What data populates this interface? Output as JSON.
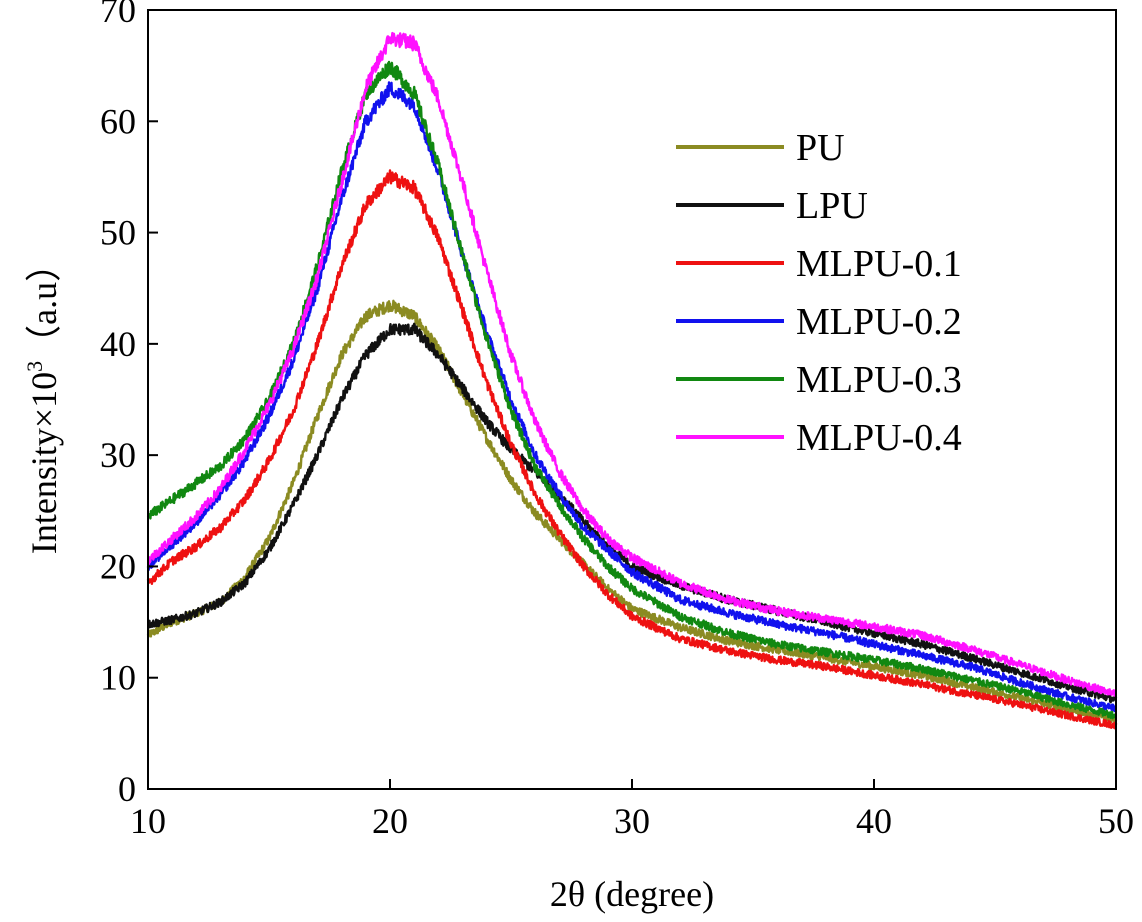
{
  "chart_data": {
    "type": "line",
    "xlabel": "2θ (degree)",
    "ylabel": "Intensity×10",
    "ylabel_superscript": "3",
    "ylabel_unit": "（a.u）",
    "xlim": [
      10,
      50
    ],
    "ylim": [
      0,
      70
    ],
    "xticks": [
      10,
      20,
      30,
      40,
      50
    ],
    "yticks": [
      0,
      10,
      20,
      30,
      40,
      50,
      60,
      70
    ],
    "grid": false,
    "legend_position": "top-right",
    "series": [
      {
        "name": "PU",
        "color": "#8B8B22",
        "points": [
          [
            10,
            13.8
          ],
          [
            11,
            15.0
          ],
          [
            12,
            15.8
          ],
          [
            13,
            16.8
          ],
          [
            14,
            19.0
          ],
          [
            15,
            22.5
          ],
          [
            16,
            27.5
          ],
          [
            17,
            33.5
          ],
          [
            18,
            39.0
          ],
          [
            19,
            42.5
          ],
          [
            20,
            43.5
          ],
          [
            21,
            42.5
          ],
          [
            22,
            39.5
          ],
          [
            23,
            35.5
          ],
          [
            24,
            31.5
          ],
          [
            25,
            27.8
          ],
          [
            26,
            24.8
          ],
          [
            27,
            22.5
          ],
          [
            28,
            20.2
          ],
          [
            29,
            18.0
          ],
          [
            30,
            16.2
          ],
          [
            32,
            14.5
          ],
          [
            34,
            13.3
          ],
          [
            36,
            12.5
          ],
          [
            38,
            11.8
          ],
          [
            40,
            11.0
          ],
          [
            42,
            10.2
          ],
          [
            44,
            9.2
          ],
          [
            46,
            8.2
          ],
          [
            48,
            7.2
          ],
          [
            50,
            6.2
          ]
        ]
      },
      {
        "name": "LPU",
        "color": "#111111",
        "points": [
          [
            10,
            14.8
          ],
          [
            11,
            15.2
          ],
          [
            12,
            15.8
          ],
          [
            13,
            16.8
          ],
          [
            14,
            18.5
          ],
          [
            15,
            21.5
          ],
          [
            16,
            25.5
          ],
          [
            17,
            30.0
          ],
          [
            18,
            35.0
          ],
          [
            19,
            39.0
          ],
          [
            20,
            41.3
          ],
          [
            21,
            41.3
          ],
          [
            22,
            39.0
          ],
          [
            23,
            36.0
          ],
          [
            24,
            33.0
          ],
          [
            25,
            30.5
          ],
          [
            26,
            28.5
          ],
          [
            27,
            26.5
          ],
          [
            28,
            24.0
          ],
          [
            29,
            21.8
          ],
          [
            30,
            20.0
          ],
          [
            32,
            18.3
          ],
          [
            34,
            17.0
          ],
          [
            36,
            16.0
          ],
          [
            38,
            15.0
          ],
          [
            40,
            14.0
          ],
          [
            42,
            13.0
          ],
          [
            44,
            11.8
          ],
          [
            46,
            10.5
          ],
          [
            48,
            9.2
          ],
          [
            50,
            8.0
          ]
        ]
      },
      {
        "name": "MLPU-0.1",
        "color": "#EE1111",
        "points": [
          [
            10,
            18.5
          ],
          [
            11,
            20.5
          ],
          [
            12,
            21.8
          ],
          [
            13,
            23.5
          ],
          [
            14,
            26.0
          ],
          [
            15,
            29.5
          ],
          [
            16,
            34.0
          ],
          [
            17,
            40.0
          ],
          [
            18,
            47.0
          ],
          [
            19,
            52.5
          ],
          [
            20,
            55.0
          ],
          [
            21,
            54.0
          ],
          [
            22,
            49.5
          ],
          [
            23,
            43.0
          ],
          [
            24,
            36.5
          ],
          [
            25,
            31.0
          ],
          [
            26,
            26.5
          ],
          [
            27,
            23.0
          ],
          [
            28,
            20.0
          ],
          [
            29,
            17.5
          ],
          [
            30,
            15.5
          ],
          [
            32,
            13.5
          ],
          [
            34,
            12.4
          ],
          [
            36,
            11.6
          ],
          [
            38,
            11.0
          ],
          [
            40,
            10.2
          ],
          [
            42,
            9.4
          ],
          [
            44,
            8.5
          ],
          [
            46,
            7.6
          ],
          [
            48,
            6.6
          ],
          [
            50,
            5.7
          ]
        ]
      },
      {
        "name": "MLPU-0.2",
        "color": "#1111EE",
        "points": [
          [
            10,
            20.0
          ],
          [
            11,
            22.0
          ],
          [
            12,
            24.0
          ],
          [
            13,
            26.5
          ],
          [
            14,
            29.5
          ],
          [
            15,
            33.5
          ],
          [
            16,
            38.5
          ],
          [
            17,
            45.0
          ],
          [
            18,
            53.0
          ],
          [
            19,
            60.0
          ],
          [
            20,
            63.0
          ],
          [
            21,
            61.5
          ],
          [
            22,
            55.5
          ],
          [
            23,
            48.0
          ],
          [
            24,
            41.0
          ],
          [
            25,
            35.0
          ],
          [
            26,
            30.0
          ],
          [
            27,
            26.5
          ],
          [
            28,
            23.5
          ],
          [
            29,
            21.5
          ],
          [
            30,
            19.5
          ],
          [
            32,
            17.0
          ],
          [
            34,
            15.8
          ],
          [
            36,
            14.8
          ],
          [
            38,
            14.0
          ],
          [
            40,
            13.0
          ],
          [
            42,
            12.0
          ],
          [
            44,
            11.0
          ],
          [
            46,
            9.6
          ],
          [
            48,
            8.3
          ],
          [
            50,
            7.2
          ]
        ]
      },
      {
        "name": "MLPU-0.3",
        "color": "#118811",
        "points": [
          [
            10,
            24.5
          ],
          [
            11,
            26.0
          ],
          [
            12,
            27.5
          ],
          [
            13,
            29.0
          ],
          [
            14,
            31.5
          ],
          [
            15,
            35.0
          ],
          [
            16,
            40.0
          ],
          [
            17,
            47.0
          ],
          [
            18,
            55.5
          ],
          [
            19,
            62.5
          ],
          [
            20,
            65.0
          ],
          [
            21,
            62.5
          ],
          [
            22,
            56.0
          ],
          [
            23,
            48.0
          ],
          [
            24,
            40.5
          ],
          [
            25,
            34.0
          ],
          [
            26,
            29.0
          ],
          [
            27,
            25.5
          ],
          [
            28,
            22.5
          ],
          [
            29,
            20.0
          ],
          [
            30,
            18.0
          ],
          [
            32,
            15.5
          ],
          [
            34,
            14.0
          ],
          [
            36,
            13.0
          ],
          [
            38,
            12.3
          ],
          [
            40,
            11.6
          ],
          [
            42,
            10.8
          ],
          [
            44,
            9.8
          ],
          [
            46,
            8.8
          ],
          [
            48,
            7.6
          ],
          [
            50,
            6.6
          ]
        ]
      },
      {
        "name": "MLPU-0.4",
        "color": "#FF11FF",
        "points": [
          [
            10,
            20.5
          ],
          [
            11,
            22.5
          ],
          [
            12,
            24.5
          ],
          [
            13,
            27.0
          ],
          [
            14,
            30.5
          ],
          [
            15,
            34.5
          ],
          [
            16,
            39.5
          ],
          [
            17,
            46.0
          ],
          [
            18,
            54.5
          ],
          [
            19,
            63.0
          ],
          [
            20,
            67.5
          ],
          [
            21,
            67.0
          ],
          [
            22,
            62.0
          ],
          [
            23,
            54.5
          ],
          [
            24,
            46.5
          ],
          [
            25,
            39.0
          ],
          [
            26,
            33.0
          ],
          [
            27,
            28.5
          ],
          [
            28,
            25.0
          ],
          [
            29,
            22.5
          ],
          [
            30,
            20.8
          ],
          [
            32,
            18.5
          ],
          [
            34,
            17.0
          ],
          [
            36,
            16.0
          ],
          [
            38,
            15.3
          ],
          [
            40,
            14.6
          ],
          [
            42,
            13.8
          ],
          [
            44,
            12.6
          ],
          [
            46,
            11.2
          ],
          [
            48,
            9.8
          ],
          [
            50,
            8.5
          ]
        ]
      }
    ]
  }
}
